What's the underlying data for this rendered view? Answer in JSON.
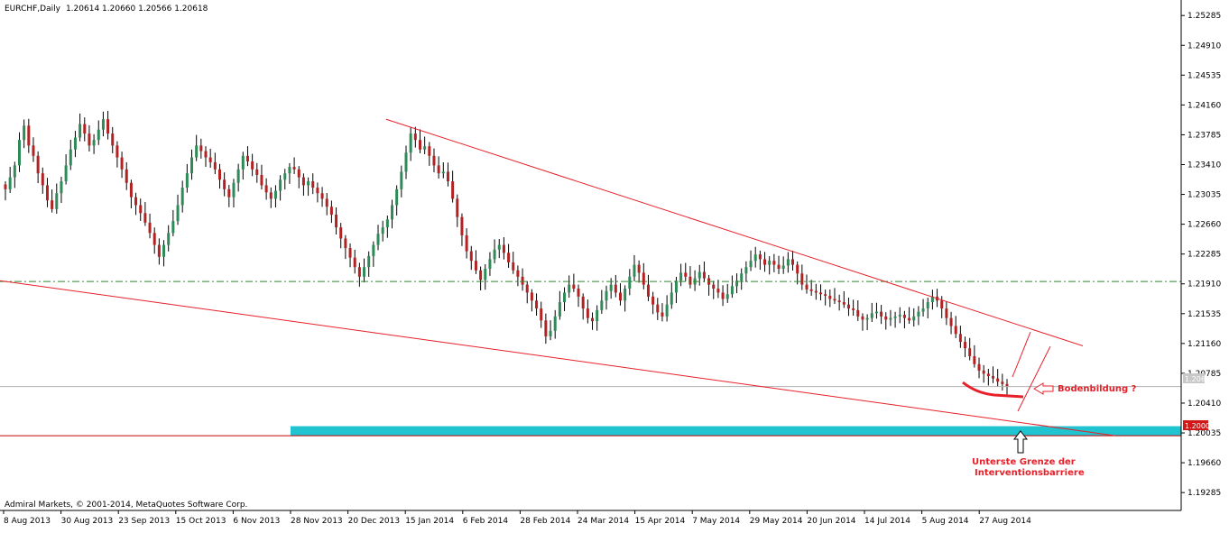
{
  "chart_data": {
    "type": "candlestick",
    "symbol_header": "EURCHF,Daily",
    "ohlc_header": "1.20614 1.20660 1.20566 1.20618",
    "copyright": "Admiral Markets, © 2001-2014, MetaQuotes Software Corp.",
    "current_price_label": "1.20618",
    "floor_price_label": "1.20000",
    "y_ticks": [
      "1.25285",
      "1.24910",
      "1.24535",
      "1.24160",
      "1.23785",
      "1.23410",
      "1.23035",
      "1.22660",
      "1.22285",
      "1.21910",
      "1.21535",
      "1.21160",
      "1.20785",
      "1.20410",
      "1.20035",
      "1.19660",
      "1.19285"
    ],
    "x_ticks": [
      "8 Aug 2013",
      "30 Aug 2013",
      "23 Sep 2013",
      "15 Oct 2013",
      "6 Nov 2013",
      "28 Nov 2013",
      "20 Dec 2013",
      "15 Jan 2014",
      "6 Feb 2014",
      "28 Feb 2014",
      "24 Mar 2014",
      "15 Apr 2014",
      "7 May 2014",
      "29 May 2014",
      "20 Jun 2014",
      "14 Jul 2014",
      "5 Aug 2014",
      "27 Aug 2014"
    ],
    "ylim": [
      1.1906,
      1.2548
    ],
    "colors": {
      "bull_candle": "#2e8b57",
      "bear_candle": "#b22222",
      "wick": "#000000",
      "trendline": "#e8202a",
      "support_band": "#20c4d0",
      "floor_line": "#c00000",
      "resistance_dashed": "#2e8b2e",
      "current_price_line": "#b0b0b0"
    },
    "levels": {
      "resistance_dashed": 1.2194,
      "floor": 1.2,
      "current": 1.20618
    },
    "trendlines": [
      {
        "name": "upper",
        "from": [
          "20 Dec 2013",
          1.2398
        ],
        "to": [
          "10 Sep 2014",
          1.2113
        ]
      },
      {
        "name": "lower",
        "from": [
          "5 Aug 2013",
          1.2195
        ],
        "to": [
          "10 Sep 2014",
          1.2
        ]
      }
    ],
    "support_band": {
      "from": "28 Nov 2013",
      "to_edge": true,
      "low": 1.2,
      "high": 1.2012
    },
    "closes": [
      1.231,
      1.2325,
      1.234,
      1.2372,
      1.239,
      1.2365,
      1.2352,
      1.233,
      1.2315,
      1.2296,
      1.2285,
      1.2305,
      1.232,
      1.234,
      1.236,
      1.2375,
      1.2392,
      1.238,
      1.2365,
      1.2372,
      1.2385,
      1.2398,
      1.238,
      1.2365,
      1.235,
      1.2335,
      1.2318,
      1.23,
      1.229,
      1.228,
      1.2268,
      1.2255,
      1.224,
      1.2225,
      1.224,
      1.2255,
      1.227,
      1.229,
      1.2312,
      1.233,
      1.235,
      1.2365,
      1.2358,
      1.235,
      1.2344,
      1.2335,
      1.2322,
      1.231,
      1.23,
      1.2318,
      1.2335,
      1.2352,
      1.2345,
      1.2335,
      1.2328,
      1.2315,
      1.2306,
      1.2298,
      1.2308,
      1.2322,
      1.233,
      1.2338,
      1.2335,
      1.2325,
      1.2315,
      1.232,
      1.2312,
      1.2305,
      1.2298,
      1.2288,
      1.2278,
      1.2262,
      1.2248,
      1.2236,
      1.2224,
      1.2212,
      1.22,
      1.2212,
      1.2226,
      1.224,
      1.2254,
      1.2262,
      1.2272,
      1.229,
      1.231,
      1.2332,
      1.2356,
      1.238,
      1.2372,
      1.236,
      1.2364,
      1.2352,
      1.234,
      1.233,
      1.2332,
      1.232,
      1.2298,
      1.2275,
      1.2252,
      1.2232,
      1.222,
      1.2208,
      1.2196,
      1.221,
      1.2222,
      1.2234,
      1.224,
      1.223,
      1.2218,
      1.2208,
      1.22,
      1.219,
      1.218,
      1.217,
      1.216,
      1.2145,
      1.2125,
      1.2132,
      1.215,
      1.2168,
      1.218,
      1.219,
      1.2185,
      1.2175,
      1.216,
      1.2148,
      1.2144,
      1.2158,
      1.217,
      1.2182,
      1.219,
      1.218,
      1.217,
      1.2185,
      1.22,
      1.2215,
      1.2205,
      1.219,
      1.2175,
      1.2165,
      1.2155,
      1.215,
      1.2165,
      1.218,
      1.2195,
      1.2205,
      1.22,
      1.219,
      1.2198,
      1.2206,
      1.2198,
      1.219,
      1.2185,
      1.218,
      1.2172,
      1.2178,
      1.2188,
      1.2195,
      1.2204,
      1.2212,
      1.222,
      1.2228,
      1.2222,
      1.2215,
      1.222,
      1.2215,
      1.221,
      1.2214,
      1.2222,
      1.2215,
      1.2204,
      1.219,
      1.2184,
      1.2182,
      1.218,
      1.2178,
      1.2176,
      1.2172,
      1.217,
      1.2168,
      1.2165,
      1.216,
      1.2158,
      1.215,
      1.2146,
      1.2148,
      1.2154,
      1.2156,
      1.215,
      1.2146,
      1.2148,
      1.215,
      1.2152,
      1.2148,
      1.2145,
      1.215,
      1.2156,
      1.216,
      1.2168,
      1.2175,
      1.217,
      1.216,
      1.2148,
      1.2138,
      1.2128,
      1.2118,
      1.211,
      1.21,
      1.209,
      1.2082,
      1.2078,
      1.2075,
      1.2072,
      1.2068,
      1.2065,
      1.2062
    ],
    "annotations": [
      {
        "text": "Bodenbildung ?"
      },
      {
        "text": "Unterste Grenze der"
      },
      {
        "text": "Interventionsbarriere"
      }
    ]
  }
}
